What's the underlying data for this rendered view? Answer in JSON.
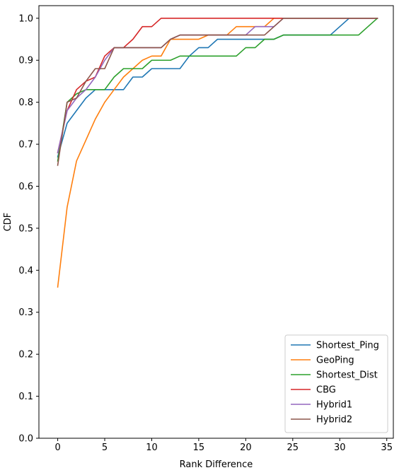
{
  "chart_data": {
    "type": "line",
    "title": "",
    "xlabel": "Rank Difference",
    "ylabel": "CDF",
    "xlim": [
      -2.0,
      35.7
    ],
    "ylim": [
      0.0,
      1.03
    ],
    "xticks": [
      0,
      5,
      10,
      15,
      20,
      25,
      30,
      35
    ],
    "yticks": [
      0.0,
      0.1,
      0.2,
      0.3,
      0.4,
      0.5,
      0.6,
      0.7,
      0.8,
      0.9,
      1.0
    ],
    "grid": false,
    "legend_position": "lower right",
    "series": [
      {
        "name": "Shortest_Ping",
        "color": "#1f77b4",
        "x": [
          0,
          1,
          2,
          3,
          4,
          5,
          6,
          7,
          8,
          9,
          10,
          11,
          12,
          13,
          14,
          15,
          16,
          17,
          18,
          19,
          20,
          21,
          22,
          23,
          24,
          25,
          26,
          27,
          28,
          29,
          30,
          31,
          32,
          33,
          34
        ],
        "y": [
          0.67,
          0.75,
          0.78,
          0.81,
          0.83,
          0.83,
          0.83,
          0.83,
          0.86,
          0.86,
          0.88,
          0.88,
          0.88,
          0.88,
          0.91,
          0.93,
          0.93,
          0.95,
          0.95,
          0.95,
          0.95,
          0.95,
          0.95,
          0.95,
          0.96,
          0.96,
          0.96,
          0.96,
          0.96,
          0.96,
          0.98,
          1.0,
          1.0,
          1.0,
          1.0
        ]
      },
      {
        "name": "GeoPing",
        "color": "#ff7f0e",
        "x": [
          0,
          1,
          2,
          3,
          4,
          5,
          6,
          7,
          8,
          9,
          10,
          11,
          12,
          13,
          14,
          15,
          16,
          17,
          18,
          19,
          20,
          21,
          22,
          23,
          24,
          25,
          26,
          27,
          28,
          29,
          30,
          31,
          32,
          33,
          34
        ],
        "y": [
          0.36,
          0.55,
          0.66,
          0.71,
          0.76,
          0.8,
          0.83,
          0.86,
          0.88,
          0.9,
          0.91,
          0.91,
          0.95,
          0.95,
          0.95,
          0.95,
          0.96,
          0.96,
          0.96,
          0.98,
          0.98,
          0.98,
          0.98,
          1.0,
          1.0,
          1.0,
          1.0,
          1.0,
          1.0,
          1.0,
          1.0,
          1.0,
          1.0,
          1.0,
          1.0
        ]
      },
      {
        "name": "Shortest_Dist",
        "color": "#2ca02c",
        "x": [
          0,
          1,
          2,
          3,
          4,
          5,
          6,
          7,
          8,
          9,
          10,
          11,
          12,
          13,
          14,
          15,
          16,
          17,
          18,
          19,
          20,
          21,
          22,
          23,
          24,
          25,
          26,
          27,
          28,
          29,
          30,
          31,
          32,
          33,
          34
        ],
        "y": [
          0.66,
          0.8,
          0.82,
          0.83,
          0.83,
          0.83,
          0.86,
          0.88,
          0.88,
          0.88,
          0.9,
          0.9,
          0.9,
          0.91,
          0.91,
          0.91,
          0.91,
          0.91,
          0.91,
          0.91,
          0.93,
          0.93,
          0.95,
          0.95,
          0.96,
          0.96,
          0.96,
          0.96,
          0.96,
          0.96,
          0.96,
          0.96,
          0.96,
          0.98,
          1.0
        ]
      },
      {
        "name": "CBG",
        "color": "#d62728",
        "x": [
          0,
          1,
          2,
          3,
          4,
          5,
          6,
          7,
          8,
          9,
          10,
          11,
          12,
          13,
          14,
          15,
          16,
          17,
          18,
          19,
          20,
          21,
          22,
          23,
          24,
          25,
          26,
          27,
          28,
          29,
          30,
          31,
          32,
          33,
          34
        ],
        "y": [
          0.68,
          0.78,
          0.83,
          0.85,
          0.86,
          0.91,
          0.93,
          0.93,
          0.95,
          0.98,
          0.98,
          1.0,
          1.0,
          1.0,
          1.0,
          1.0,
          1.0,
          1.0,
          1.0,
          1.0,
          1.0,
          1.0,
          1.0,
          1.0,
          1.0,
          1.0,
          1.0,
          1.0,
          1.0,
          1.0,
          1.0,
          1.0,
          1.0,
          1.0,
          1.0
        ]
      },
      {
        "name": "Hybrid1",
        "color": "#9467bd",
        "x": [
          0,
          1,
          2,
          3,
          4,
          5,
          6,
          7,
          8,
          9,
          10,
          11,
          12,
          13,
          14,
          15,
          16,
          17,
          18,
          19,
          20,
          21,
          22,
          23,
          24,
          25,
          26,
          27,
          28,
          29,
          30,
          31,
          32,
          33,
          34
        ],
        "y": [
          0.68,
          0.78,
          0.81,
          0.83,
          0.86,
          0.9,
          0.93,
          0.93,
          0.93,
          0.93,
          0.93,
          0.93,
          0.95,
          0.96,
          0.96,
          0.96,
          0.96,
          0.96,
          0.96,
          0.96,
          0.96,
          0.98,
          0.98,
          0.98,
          1.0,
          1.0,
          1.0,
          1.0,
          1.0,
          1.0,
          1.0,
          1.0,
          1.0,
          1.0,
          1.0
        ]
      },
      {
        "name": "Hybrid2",
        "color": "#8c564b",
        "x": [
          0,
          1,
          2,
          3,
          4,
          5,
          6,
          7,
          8,
          9,
          10,
          11,
          12,
          13,
          14,
          15,
          16,
          17,
          18,
          19,
          20,
          21,
          22,
          23,
          24,
          25,
          26,
          27,
          28,
          29,
          30,
          31,
          32,
          33,
          34
        ],
        "y": [
          0.65,
          0.8,
          0.81,
          0.85,
          0.88,
          0.88,
          0.93,
          0.93,
          0.93,
          0.93,
          0.93,
          0.93,
          0.95,
          0.96,
          0.96,
          0.96,
          0.96,
          0.96,
          0.96,
          0.96,
          0.96,
          0.96,
          0.96,
          0.98,
          1.0,
          1.0,
          1.0,
          1.0,
          1.0,
          1.0,
          1.0,
          1.0,
          1.0,
          1.0,
          1.0
        ]
      }
    ]
  }
}
